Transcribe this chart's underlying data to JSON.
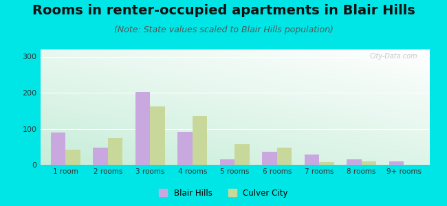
{
  "title": "Rooms in renter-occupied apartments in Blair Hills",
  "subtitle": "(Note: State values scaled to Blair Hills population)",
  "categories": [
    "1 room",
    "2 rooms",
    "3 rooms",
    "4 rooms",
    "5 rooms",
    "6 rooms",
    "7 rooms",
    "8 rooms",
    "9+ rooms"
  ],
  "blair_hills": [
    90,
    48,
    202,
    92,
    15,
    37,
    28,
    15,
    10
  ],
  "culver_city": [
    42,
    75,
    162,
    135,
    58,
    48,
    8,
    10,
    0
  ],
  "blair_color": "#c9a8e0",
  "culver_color": "#c8d89a",
  "ylim": [
    0,
    320
  ],
  "yticks": [
    0,
    100,
    200,
    300
  ],
  "outer_bg": "#00e5e5",
  "title_fontsize": 14,
  "subtitle_fontsize": 9,
  "legend_labels": [
    "Blair Hills",
    "Culver City"
  ],
  "watermark": "City-Data.com",
  "bar_width": 0.35,
  "grid_color": "#ffffff",
  "tick_fontsize": 7.5,
  "ytick_fontsize": 8
}
